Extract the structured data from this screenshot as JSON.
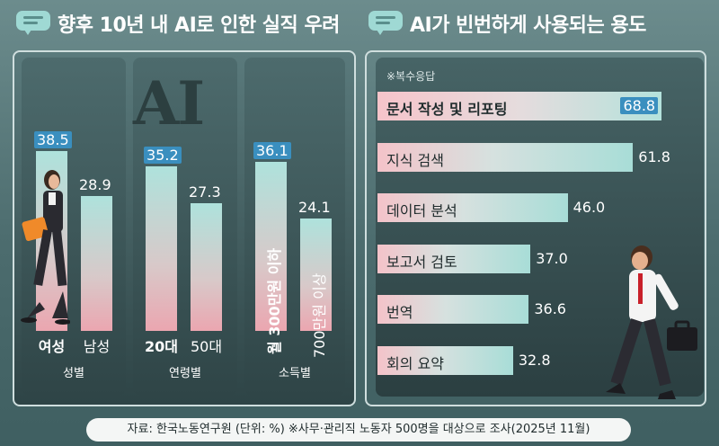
{
  "left_title": "향후 10년 내 AI로 인한 실직 우려",
  "right_title": "AI가 빈번하게 사용되는 용도",
  "watermark": "AI",
  "right_note": "※복수응답",
  "footer": "자료: 한국노동연구원 (단위: %) ※사무·관리직 노동자 500명을 대상으로 조사(2025년 11월)",
  "colors": {
    "highlight": "#3a8fbf",
    "bar_top": "#aee2dc",
    "bar_bottom": "#eba6b0",
    "background": "#4e6e70"
  },
  "chart_data": [
    {
      "type": "bar",
      "title": "향후 10년 내 AI로 인한 실직 우려",
      "groups": [
        {
          "label": "성별",
          "bars": [
            {
              "label": "여성",
              "value": 38.5,
              "value_text": "38.5",
              "highlight": true
            },
            {
              "label": "남성",
              "value": 28.9,
              "value_text": "28.9",
              "highlight": false
            }
          ]
        },
        {
          "label": "연령별",
          "bars": [
            {
              "label": "20대",
              "value": 35.2,
              "value_text": "35.2",
              "highlight": true
            },
            {
              "label": "50대",
              "value": 27.3,
              "value_text": "27.3",
              "highlight": false
            }
          ]
        },
        {
          "label": "소득별",
          "bars": [
            {
              "label": "월 300만원 이하",
              "value": 36.1,
              "value_text": "36.1",
              "highlight": true
            },
            {
              "label": "700만원 이상",
              "value": 24.1,
              "value_text": "24.1",
              "highlight": false
            }
          ]
        }
      ]
    },
    {
      "type": "bar",
      "orientation": "horizontal",
      "title": "AI가 빈번하게 사용되는 용도",
      "categories": [
        "문서 작성 및 리포팅",
        "지식 검색",
        "데이터 분석",
        "보고서 검토",
        "번역",
        "회의 요약"
      ],
      "values": [
        68.8,
        61.8,
        46.0,
        37.0,
        36.6,
        32.8
      ],
      "value_texts": [
        "68.8",
        "61.8",
        "46.0",
        "37.0",
        "36.6",
        "32.8"
      ],
      "highlight_index": 0
    }
  ]
}
